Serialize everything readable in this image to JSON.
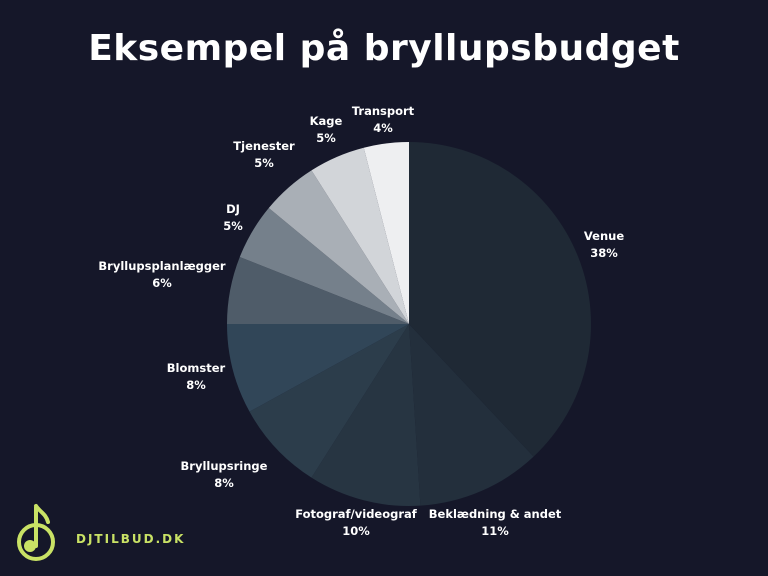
{
  "title": "Eksempel på bryllupsbudget",
  "chart_data": {
    "type": "pie",
    "title": "Eksempel på bryllupsbudget",
    "slices": [
      {
        "label": "Venue",
        "value": 38,
        "display": "38%",
        "color": "#1f2935"
      },
      {
        "label": "Beklædning & andet",
        "value": 11,
        "display": "11%",
        "color": "#232f3c"
      },
      {
        "label": "Fotograf/videograf",
        "value": 10,
        "display": "10%",
        "color": "#273542"
      },
      {
        "label": "Bryllupsringe",
        "value": 8,
        "display": "8%",
        "color": "#2c3d4b"
      },
      {
        "label": "Blomster",
        "value": 8,
        "display": "8%",
        "color": "#314658"
      },
      {
        "label": "Bryllupsplanlægger",
        "value": 6,
        "display": "6%",
        "color": "#4f5c69"
      },
      {
        "label": "DJ",
        "value": 5,
        "display": "5%",
        "color": "#75808b"
      },
      {
        "label": "Tjenester",
        "value": 5,
        "display": "5%",
        "color": "#a9afb6"
      },
      {
        "label": "Kage",
        "value": 5,
        "display": "5%",
        "color": "#d2d5d9"
      },
      {
        "label": "Transport",
        "value": 4,
        "display": "4%",
        "color": "#eeeff1"
      }
    ],
    "start": "12 o'clock",
    "direction": "clockwise",
    "legend": "none"
  },
  "logo": {
    "text": "DJTILBUD.DK",
    "accent": "#c9e265",
    "icon": "music-note-icon"
  }
}
